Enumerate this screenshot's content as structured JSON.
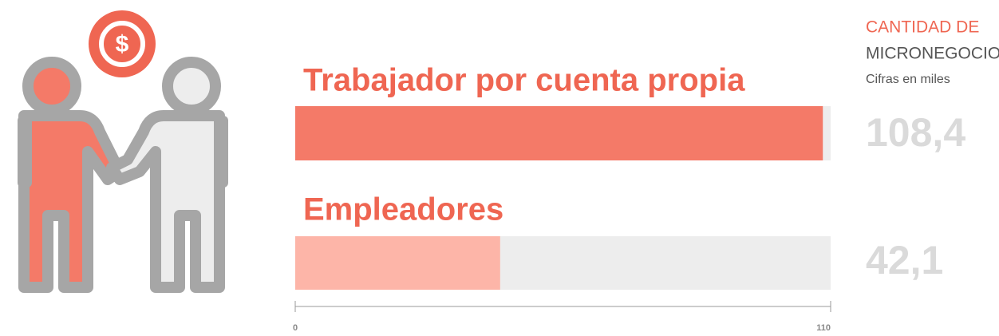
{
  "chart_data": {
    "type": "bar",
    "orientation": "horizontal",
    "title": "CANTIDAD DE",
    "subtitle": "MICRONEGOCIOS",
    "note": "Cifras en miles",
    "categories": [
      "Trabajador por cuenta propia",
      "Empleadores"
    ],
    "values": [
      108.4,
      42.1
    ],
    "value_labels": [
      "108,4",
      "42,1"
    ],
    "colors": [
      "#f47a68",
      "#fdb5a8"
    ],
    "track_color": "#ededed",
    "xlim": [
      0,
      110
    ],
    "xticks": [
      0,
      110
    ],
    "grid": false
  }
}
